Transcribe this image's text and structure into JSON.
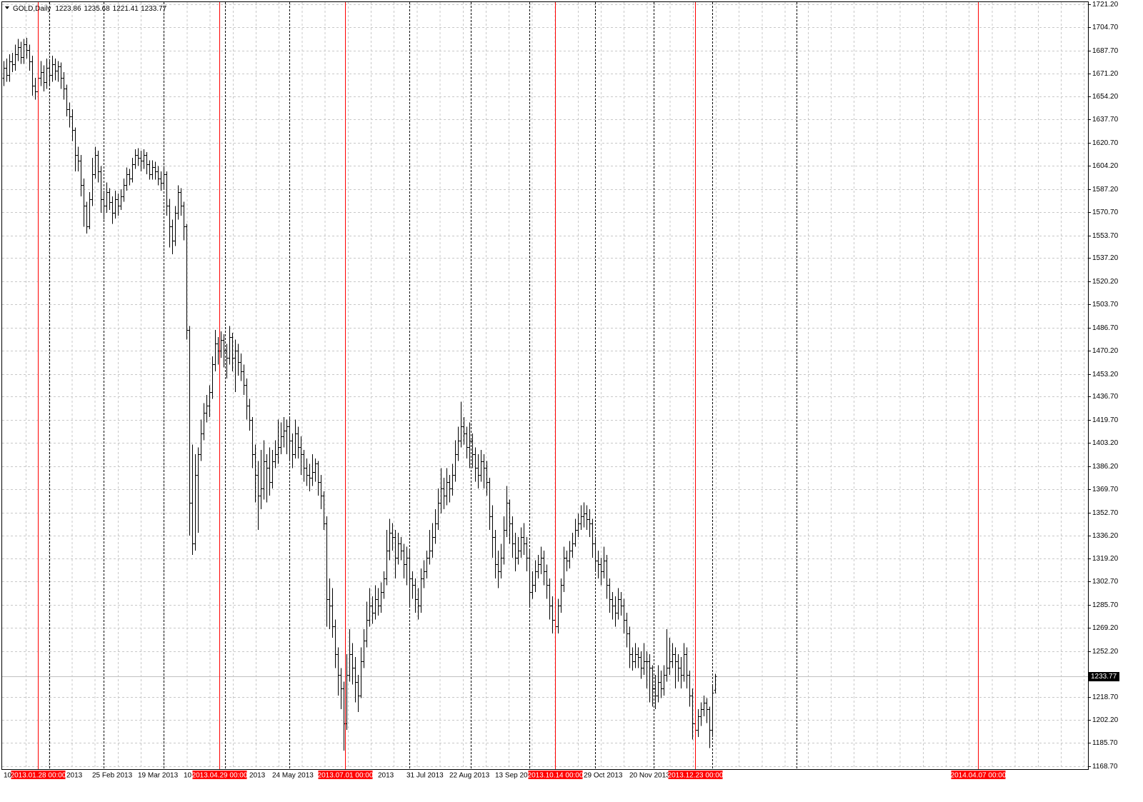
{
  "chart_data": {
    "type": "ohlc",
    "title": "GOLD,Daily",
    "color": "#000000",
    "marker_color": "#ff0000",
    "grid": true,
    "ylim": [
      1166.6,
      1722.8
    ],
    "yticks": [
      {
        "value": 1168.7,
        "label": "1168.70"
      },
      {
        "value": 1185.7,
        "label": "1185.70"
      },
      {
        "value": 1202.2,
        "label": "1202.20"
      },
      {
        "value": 1218.7,
        "label": "1218.70"
      },
      {
        "value": 1252.2,
        "label": "1252.20"
      },
      {
        "value": 1269.2,
        "label": "1269.20"
      },
      {
        "value": 1285.7,
        "label": "1285.70"
      },
      {
        "value": 1302.7,
        "label": "1302.70"
      },
      {
        "value": 1319.2,
        "label": "1319.20"
      },
      {
        "value": 1336.2,
        "label": "1336.20"
      },
      {
        "value": 1352.7,
        "label": "1352.70"
      },
      {
        "value": 1369.7,
        "label": "1369.70"
      },
      {
        "value": 1386.2,
        "label": "1386.20"
      },
      {
        "value": 1403.2,
        "label": "1403.20"
      },
      {
        "value": 1419.7,
        "label": "1419.70"
      },
      {
        "value": 1436.7,
        "label": "1436.70"
      },
      {
        "value": 1453.2,
        "label": "1453.20"
      },
      {
        "value": 1470.2,
        "label": "1470.20"
      },
      {
        "value": 1486.7,
        "label": "1486.70"
      },
      {
        "value": 1503.7,
        "label": "1503.70"
      },
      {
        "value": 1520.2,
        "label": "1520.20"
      },
      {
        "value": 1537.2,
        "label": "1537.20"
      },
      {
        "value": 1553.7,
        "label": "1553.70"
      },
      {
        "value": 1570.7,
        "label": "1570.70"
      },
      {
        "value": 1587.2,
        "label": "1587.20"
      },
      {
        "value": 1604.2,
        "label": "1604.20"
      },
      {
        "value": 1620.7,
        "label": "1620.70"
      },
      {
        "value": 1637.7,
        "label": "1637.70"
      },
      {
        "value": 1654.2,
        "label": "1654.20"
      },
      {
        "value": 1671.2,
        "label": "1671.20"
      },
      {
        "value": 1687.7,
        "label": "1687.70"
      },
      {
        "value": 1704.7,
        "label": "1704.70"
      },
      {
        "value": 1721.2,
        "label": "1721.20"
      }
    ],
    "x_labels": [
      {
        "value": 0,
        "label": "10"
      },
      {
        "value": 22,
        "label": "2013"
      },
      {
        "value": 31,
        "label": "25 Feb 2013"
      },
      {
        "value": 47,
        "label": "19 Mar 2013"
      },
      {
        "value": 63,
        "label": "10"
      },
      {
        "value": 86,
        "label": "2013"
      },
      {
        "value": 94,
        "label": "24 May 2013"
      },
      {
        "value": 131,
        "label": "2013"
      },
      {
        "value": 141,
        "label": "31 Jul 2013"
      },
      {
        "value": 156,
        "label": "22 Aug 2013"
      },
      {
        "value": 172,
        "label": "13 Sep 20"
      },
      {
        "value": 203,
        "label": "29 Oct 2013"
      },
      {
        "value": 219,
        "label": "20 Nov 2013"
      }
    ],
    "vlines": [
      {
        "value": 12,
        "label": "2013.01.28 00:00"
      },
      {
        "value": 75.5,
        "label": "2013.04.29 00:00"
      },
      {
        "value": 119.5,
        "label": "2013.07.01 00:00"
      },
      {
        "value": 193,
        "label": "2013.10.14 00:00"
      },
      {
        "value": 242,
        "label": "2013.12.23 00:00"
      },
      {
        "value": 341,
        "label": "2014.04.07 00:00"
      }
    ],
    "separators": [
      16,
      35,
      56,
      77.5,
      100,
      142,
      163.5,
      184,
      207,
      227.5,
      248,
      277.5
    ],
    "open": [
      1668,
      1675,
      1670,
      1680,
      1678,
      1685,
      1690,
      1683,
      1692,
      1688,
      1680,
      1662,
      1658,
      1668,
      1672,
      1665,
      1675,
      1670,
      1678,
      1673,
      1676,
      1668,
      1660,
      1645,
      1640,
      1630,
      1612,
      1608,
      1590,
      1575,
      1560,
      1580,
      1598,
      1612,
      1600,
      1580,
      1575,
      1585,
      1578,
      1570,
      1580,
      1575,
      1582,
      1590,
      1598,
      1595,
      1605,
      1612,
      1610,
      1608,
      1612,
      1605,
      1598,
      1603,
      1600,
      1595,
      1592,
      1598,
      1575,
      1560,
      1550,
      1570,
      1585,
      1575,
      1560,
      1485,
      1360,
      1330,
      1380,
      1395,
      1410,
      1425,
      1430,
      1440,
      1460,
      1475,
      1470,
      1478,
      1470,
      1465,
      1480,
      1465,
      1470,
      1462,
      1455,
      1445,
      1430,
      1420,
      1395,
      1380,
      1365,
      1370,
      1390,
      1385,
      1375,
      1390,
      1395,
      1400,
      1408,
      1412,
      1415,
      1405,
      1395,
      1410,
      1400,
      1395,
      1385,
      1380,
      1378,
      1382,
      1388,
      1375,
      1365,
      1345,
      1290,
      1285,
      1270,
      1250,
      1235,
      1225,
      1200,
      1235,
      1250,
      1240,
      1230,
      1220,
      1245,
      1260,
      1275,
      1285,
      1280,
      1290,
      1285,
      1295,
      1305,
      1325,
      1338,
      1335,
      1320,
      1330,
      1325,
      1315,
      1320,
      1305,
      1300,
      1290,
      1285,
      1305,
      1310,
      1320,
      1325,
      1335,
      1345,
      1360,
      1370,
      1365,
      1375,
      1370,
      1380,
      1395,
      1405,
      1415,
      1410,
      1400,
      1405,
      1395,
      1385,
      1380,
      1390,
      1385,
      1375,
      1350,
      1335,
      1315,
      1310,
      1320,
      1340,
      1360,
      1345,
      1330,
      1320,
      1325,
      1335,
      1330,
      1320,
      1295,
      1300,
      1310,
      1315,
      1320,
      1310,
      1300,
      1285,
      1275,
      1270,
      1285,
      1300,
      1320,
      1318,
      1325,
      1330,
      1340,
      1345,
      1350,
      1352,
      1348,
      1345,
      1330,
      1318,
      1315,
      1310,
      1318,
      1300,
      1290,
      1285,
      1280,
      1290,
      1285,
      1275,
      1265,
      1250,
      1245,
      1250,
      1248,
      1240,
      1245,
      1245,
      1240,
      1225,
      1220,
      1230,
      1225,
      1235,
      1240,
      1245,
      1250,
      1245,
      1240,
      1235,
      1250,
      1235,
      1220,
      1200,
      1195,
      1205,
      1210,
      1215,
      1210,
      1195,
      1223.86
    ],
    "high": [
      1680,
      1682,
      1685,
      1686,
      1692,
      1696,
      1694,
      1696,
      1697,
      1692,
      1684,
      1668,
      1675,
      1680,
      1677,
      1682,
      1680,
      1684,
      1682,
      1680,
      1679,
      1672,
      1663,
      1650,
      1645,
      1632,
      1618,
      1612,
      1595,
      1578,
      1585,
      1610,
      1618,
      1615,
      1604,
      1586,
      1592,
      1588,
      1582,
      1586,
      1584,
      1587,
      1595,
      1603,
      1602,
      1610,
      1616,
      1617,
      1615,
      1616,
      1614,
      1608,
      1608,
      1607,
      1604,
      1600,
      1604,
      1600,
      1580,
      1565,
      1575,
      1590,
      1588,
      1578,
      1562,
      1488,
      1402,
      1395,
      1400,
      1420,
      1432,
      1438,
      1445,
      1466,
      1485,
      1480,
      1484,
      1482,
      1475,
      1488,
      1483,
      1478,
      1475,
      1468,
      1460,
      1450,
      1435,
      1422,
      1402,
      1390,
      1398,
      1405,
      1395,
      1400,
      1398,
      1405,
      1420,
      1418,
      1422,
      1420,
      1422,
      1410,
      1420,
      1415,
      1408,
      1398,
      1392,
      1388,
      1395,
      1392,
      1390,
      1380,
      1368,
      1350,
      1305,
      1298,
      1275,
      1255,
      1240,
      1230,
      1250,
      1268,
      1258,
      1248,
      1235,
      1255,
      1268,
      1288,
      1298,
      1292,
      1300,
      1298,
      1302,
      1310,
      1340,
      1348,
      1345,
      1340,
      1338,
      1335,
      1330,
      1328,
      1325,
      1310,
      1305,
      1298,
      1312,
      1318,
      1325,
      1340,
      1345,
      1355,
      1370,
      1385,
      1378,
      1385,
      1380,
      1388,
      1405,
      1415,
      1433,
      1422,
      1415,
      1418,
      1410,
      1400,
      1395,
      1398,
      1395,
      1390,
      1378,
      1358,
      1340,
      1325,
      1330,
      1350,
      1372,
      1362,
      1350,
      1338,
      1335,
      1342,
      1345,
      1335,
      1325,
      1310,
      1318,
      1322,
      1328,
      1325,
      1315,
      1305,
      1292,
      1285,
      1290,
      1305,
      1328,
      1325,
      1332,
      1338,
      1348,
      1352,
      1358,
      1360,
      1358,
      1355,
      1348,
      1335,
      1325,
      1320,
      1328,
      1322,
      1305,
      1295,
      1292,
      1298,
      1295,
      1290,
      1280,
      1270,
      1255,
      1258,
      1255,
      1252,
      1258,
      1252,
      1250,
      1242,
      1235,
      1242,
      1238,
      1242,
      1268,
      1262,
      1258,
      1255,
      1250,
      1248,
      1258,
      1255,
      1238,
      1225,
      1205,
      1210,
      1215,
      1220,
      1218,
      1212,
      1228,
      1235.68
    ],
    "low": [
      1662,
      1665,
      1665,
      1672,
      1673,
      1680,
      1678,
      1678,
      1682,
      1673,
      1655,
      1652,
      1653,
      1662,
      1658,
      1660,
      1663,
      1665,
      1666,
      1665,
      1660,
      1652,
      1640,
      1632,
      1622,
      1600,
      1600,
      1582,
      1560,
      1555,
      1558,
      1575,
      1595,
      1592,
      1570,
      1565,
      1570,
      1572,
      1562,
      1566,
      1568,
      1572,
      1578,
      1586,
      1590,
      1592,
      1602,
      1604,
      1600,
      1602,
      1598,
      1594,
      1594,
      1594,
      1590,
      1586,
      1588,
      1568,
      1545,
      1540,
      1546,
      1565,
      1568,
      1550,
      1478,
      1336,
      1322,
      1325,
      1338,
      1390,
      1405,
      1418,
      1422,
      1435,
      1455,
      1460,
      1465,
      1458,
      1450,
      1460,
      1455,
      1440,
      1452,
      1448,
      1438,
      1420,
      1412,
      1385,
      1360,
      1340,
      1355,
      1362,
      1360,
      1365,
      1370,
      1385,
      1388,
      1395,
      1400,
      1395,
      1390,
      1385,
      1392,
      1392,
      1380,
      1375,
      1372,
      1368,
      1372,
      1375,
      1365,
      1355,
      1340,
      1270,
      1268,
      1262,
      1240,
      1220,
      1210,
      1180,
      1195,
      1230,
      1228,
      1215,
      1208,
      1218,
      1240,
      1255,
      1270,
      1272,
      1275,
      1278,
      1280,
      1290,
      1300,
      1318,
      1325,
      1305,
      1315,
      1318,
      1305,
      1300,
      1285,
      1290,
      1280,
      1275,
      1280,
      1298,
      1305,
      1315,
      1320,
      1330,
      1340,
      1352,
      1355,
      1358,
      1360,
      1365,
      1375,
      1390,
      1400,
      1402,
      1392,
      1385,
      1385,
      1375,
      1370,
      1375,
      1370,
      1365,
      1340,
      1320,
      1305,
      1298,
      1305,
      1315,
      1335,
      1330,
      1320,
      1310,
      1315,
      1320,
      1322,
      1310,
      1285,
      1290,
      1295,
      1305,
      1308,
      1300,
      1290,
      1275,
      1265,
      1251,
      1265,
      1280,
      1295,
      1310,
      1312,
      1320,
      1328,
      1335,
      1340,
      1342,
      1340,
      1335,
      1320,
      1310,
      1305,
      1300,
      1305,
      1290,
      1280,
      1275,
      1270,
      1275,
      1278,
      1265,
      1255,
      1240,
      1238,
      1240,
      1240,
      1232,
      1235,
      1225,
      1215,
      1212,
      1210,
      1215,
      1218,
      1220,
      1230,
      1235,
      1240,
      1225,
      1230,
      1225,
      1230,
      1225,
      1212,
      1188,
      1186,
      1190,
      1198,
      1205,
      1200,
      1182,
      1190,
      1221.41
    ],
    "close": [
      1675,
      1670,
      1680,
      1678,
      1685,
      1690,
      1683,
      1692,
      1688,
      1680,
      1662,
      1658,
      1668,
      1672,
      1665,
      1675,
      1670,
      1678,
      1673,
      1676,
      1668,
      1660,
      1645,
      1640,
      1630,
      1612,
      1608,
      1590,
      1575,
      1560,
      1580,
      1598,
      1612,
      1600,
      1580,
      1575,
      1585,
      1578,
      1570,
      1580,
      1575,
      1582,
      1590,
      1598,
      1595,
      1605,
      1612,
      1610,
      1608,
      1612,
      1605,
      1598,
      1603,
      1600,
      1595,
      1592,
      1598,
      1575,
      1560,
      1550,
      1570,
      1585,
      1575,
      1560,
      1485,
      1360,
      1330,
      1380,
      1395,
      1410,
      1425,
      1430,
      1440,
      1460,
      1475,
      1470,
      1478,
      1470,
      1465,
      1480,
      1465,
      1470,
      1462,
      1455,
      1445,
      1430,
      1420,
      1395,
      1380,
      1365,
      1370,
      1390,
      1385,
      1375,
      1390,
      1395,
      1400,
      1408,
      1412,
      1415,
      1405,
      1395,
      1410,
      1400,
      1395,
      1385,
      1380,
      1378,
      1382,
      1388,
      1375,
      1365,
      1345,
      1290,
      1285,
      1270,
      1250,
      1235,
      1225,
      1200,
      1235,
      1250,
      1240,
      1230,
      1220,
      1245,
      1260,
      1275,
      1285,
      1280,
      1290,
      1285,
      1295,
      1305,
      1325,
      1338,
      1335,
      1320,
      1330,
      1325,
      1315,
      1320,
      1305,
      1300,
      1290,
      1285,
      1305,
      1310,
      1320,
      1325,
      1335,
      1345,
      1360,
      1370,
      1365,
      1375,
      1370,
      1380,
      1395,
      1405,
      1415,
      1410,
      1400,
      1405,
      1395,
      1385,
      1380,
      1390,
      1385,
      1375,
      1350,
      1335,
      1315,
      1310,
      1320,
      1340,
      1360,
      1345,
      1330,
      1320,
      1325,
      1335,
      1330,
      1320,
      1295,
      1300,
      1310,
      1315,
      1320,
      1310,
      1300,
      1285,
      1275,
      1270,
      1285,
      1300,
      1320,
      1318,
      1325,
      1330,
      1340,
      1345,
      1350,
      1352,
      1348,
      1345,
      1330,
      1318,
      1315,
      1310,
      1318,
      1300,
      1290,
      1285,
      1280,
      1290,
      1285,
      1275,
      1265,
      1250,
      1245,
      1250,
      1248,
      1240,
      1245,
      1245,
      1240,
      1225,
      1220,
      1230,
      1225,
      1235,
      1240,
      1245,
      1250,
      1245,
      1240,
      1235,
      1250,
      1235,
      1220,
      1200,
      1195,
      1205,
      1210,
      1215,
      1210,
      1195,
      1222,
      1233.77
    ]
  }
}
